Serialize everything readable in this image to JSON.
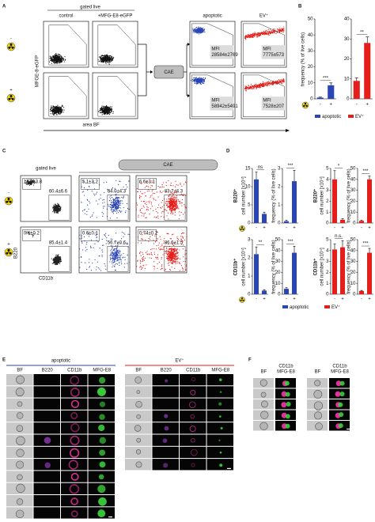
{
  "panel_a": {
    "label": "A",
    "gated_live": "gated live",
    "columns": [
      "control",
      "+MFG-E8-eGFP",
      "apoptotic",
      "EV⁺"
    ],
    "cae": "CAE",
    "y_axis": "MFGE-8-eGFP",
    "x_axis": "area BF",
    "rows": [
      "-",
      "+"
    ],
    "mfi_label": "MFI",
    "mfi": [
      [
        "28584±2769",
        "7775±573"
      ],
      [
        "58942±5491",
        "7528±207"
      ]
    ]
  },
  "panel_b": {
    "label": "B",
    "y_axis": "frequency (% of live cells)",
    "x_labels": [
      "-",
      "+"
    ],
    "legend": [
      "apoptotic",
      "EV⁺"
    ],
    "charts": [
      {
        "color": "#2a45b5",
        "ylim": [
          0,
          50
        ],
        "yticks": [
          0,
          10,
          20,
          30,
          40,
          50
        ],
        "values": [
          0.8,
          8.5
        ],
        "errors": [
          0.3,
          1.5
        ],
        "significance": "***"
      },
      {
        "color": "#e41f1b",
        "ylim": [
          0,
          40
        ],
        "yticks": [
          0,
          10,
          20,
          30,
          40
        ],
        "values": [
          9,
          28
        ],
        "errors": [
          1.5,
          3
        ],
        "significance": "**"
      }
    ]
  },
  "panel_c": {
    "label": "C",
    "gated_live": "gated live",
    "cae": "CAE",
    "y_axis": "B220",
    "x_axis": "CD11b",
    "rows": [
      "-",
      "+"
    ],
    "gates": [
      [
        [
          "13.3±3.8",
          "60.4±6.6"
        ],
        [
          "5.1±3.2",
          "64.0±4.3"
        ],
        [
          "6.6±3.1",
          "83.7±4.3"
        ]
      ],
      [
        [
          "0.6±0.2",
          "85.4±1.4"
        ],
        [
          "0.6±0.1",
          "56.7±0.6"
        ],
        [
          "0.74±0.2",
          "86.6±1.5"
        ]
      ]
    ]
  },
  "panel_d": {
    "label": "D",
    "rows": [
      "B220⁺",
      "CD11b⁺"
    ],
    "y_labels": [
      "cell number [x10⁴]",
      "frequency (% of live cells)"
    ],
    "x_labels": [
      "-",
      "+"
    ],
    "legend": [
      "apoptotic",
      "EV⁺"
    ],
    "charts": [
      [
        {
          "color": "#2a45b5",
          "ylim": [
            0,
            15
          ],
          "yticks": [
            0,
            5,
            10,
            15
          ],
          "values": [
            12,
            2.5
          ],
          "errors": [
            2,
            0.5
          ],
          "significance": "ns"
        },
        {
          "color": "#2a45b5",
          "ylim": [
            0,
            3
          ],
          "yticks": [
            0,
            1,
            2,
            3
          ],
          "values": [
            0.1,
            2.3
          ],
          "errors": [
            0.05,
            0.6
          ],
          "significance": "***"
        },
        {
          "color": "#e41f1b",
          "ylim": [
            0,
            5
          ],
          "yticks": [
            0,
            1,
            2,
            3,
            4,
            5
          ],
          "values": [
            4,
            0.3
          ],
          "errors": [
            0.8,
            0.1
          ],
          "significance": "*"
        },
        {
          "color": "#e41f1b",
          "ylim": [
            0,
            50
          ],
          "yticks": [
            0,
            10,
            20,
            30,
            40,
            50
          ],
          "values": [
            2,
            40
          ],
          "errors": [
            0.5,
            3
          ],
          "significance": "***"
        }
      ],
      [
        {
          "color": "#2a45b5",
          "ylim": [
            0,
            3
          ],
          "yticks": [
            0,
            1,
            2,
            3
          ],
          "values": [
            2.2,
            0.2
          ],
          "errors": [
            0.4,
            0.05
          ],
          "significance": "**"
        },
        {
          "color": "#2a45b5",
          "ylim": [
            0,
            50
          ],
          "yticks": [
            0,
            10,
            20,
            30,
            40,
            50
          ],
          "values": [
            5,
            38
          ],
          "errors": [
            1,
            6
          ],
          "significance": "***"
        },
        {
          "color": "#e41f1b",
          "ylim": [
            0,
            5
          ],
          "yticks": [
            0,
            1,
            2,
            3,
            4,
            5
          ],
          "values": [
            4.1,
            4.3
          ],
          "errors": [
            0.5,
            0.6
          ],
          "significance": "n.s."
        },
        {
          "color": "#e41f1b",
          "ylim": [
            0,
            50
          ],
          "yticks": [
            0,
            10,
            20,
            30,
            40,
            50
          ],
          "values": [
            3,
            38
          ],
          "errors": [
            0.5,
            4
          ],
          "significance": "***"
        }
      ]
    ]
  },
  "panel_e": {
    "label": "E",
    "groups": [
      {
        "title": "apoptotic",
        "color": "#2a45b5",
        "columns": [
          "BF",
          "B220",
          "CD11b",
          "MFG-E8"
        ]
      },
      {
        "title": "EV⁺",
        "color": "#e41f1b",
        "columns": [
          "BF",
          "B220",
          "CD11b",
          "MFG-E8"
        ]
      }
    ]
  },
  "panel_f": {
    "label": "F",
    "columns": [
      "BF",
      [
        "CD11b",
        "MFG-E8"
      ],
      "BF",
      [
        "CD11b",
        "MFG-E8"
      ]
    ]
  }
}
